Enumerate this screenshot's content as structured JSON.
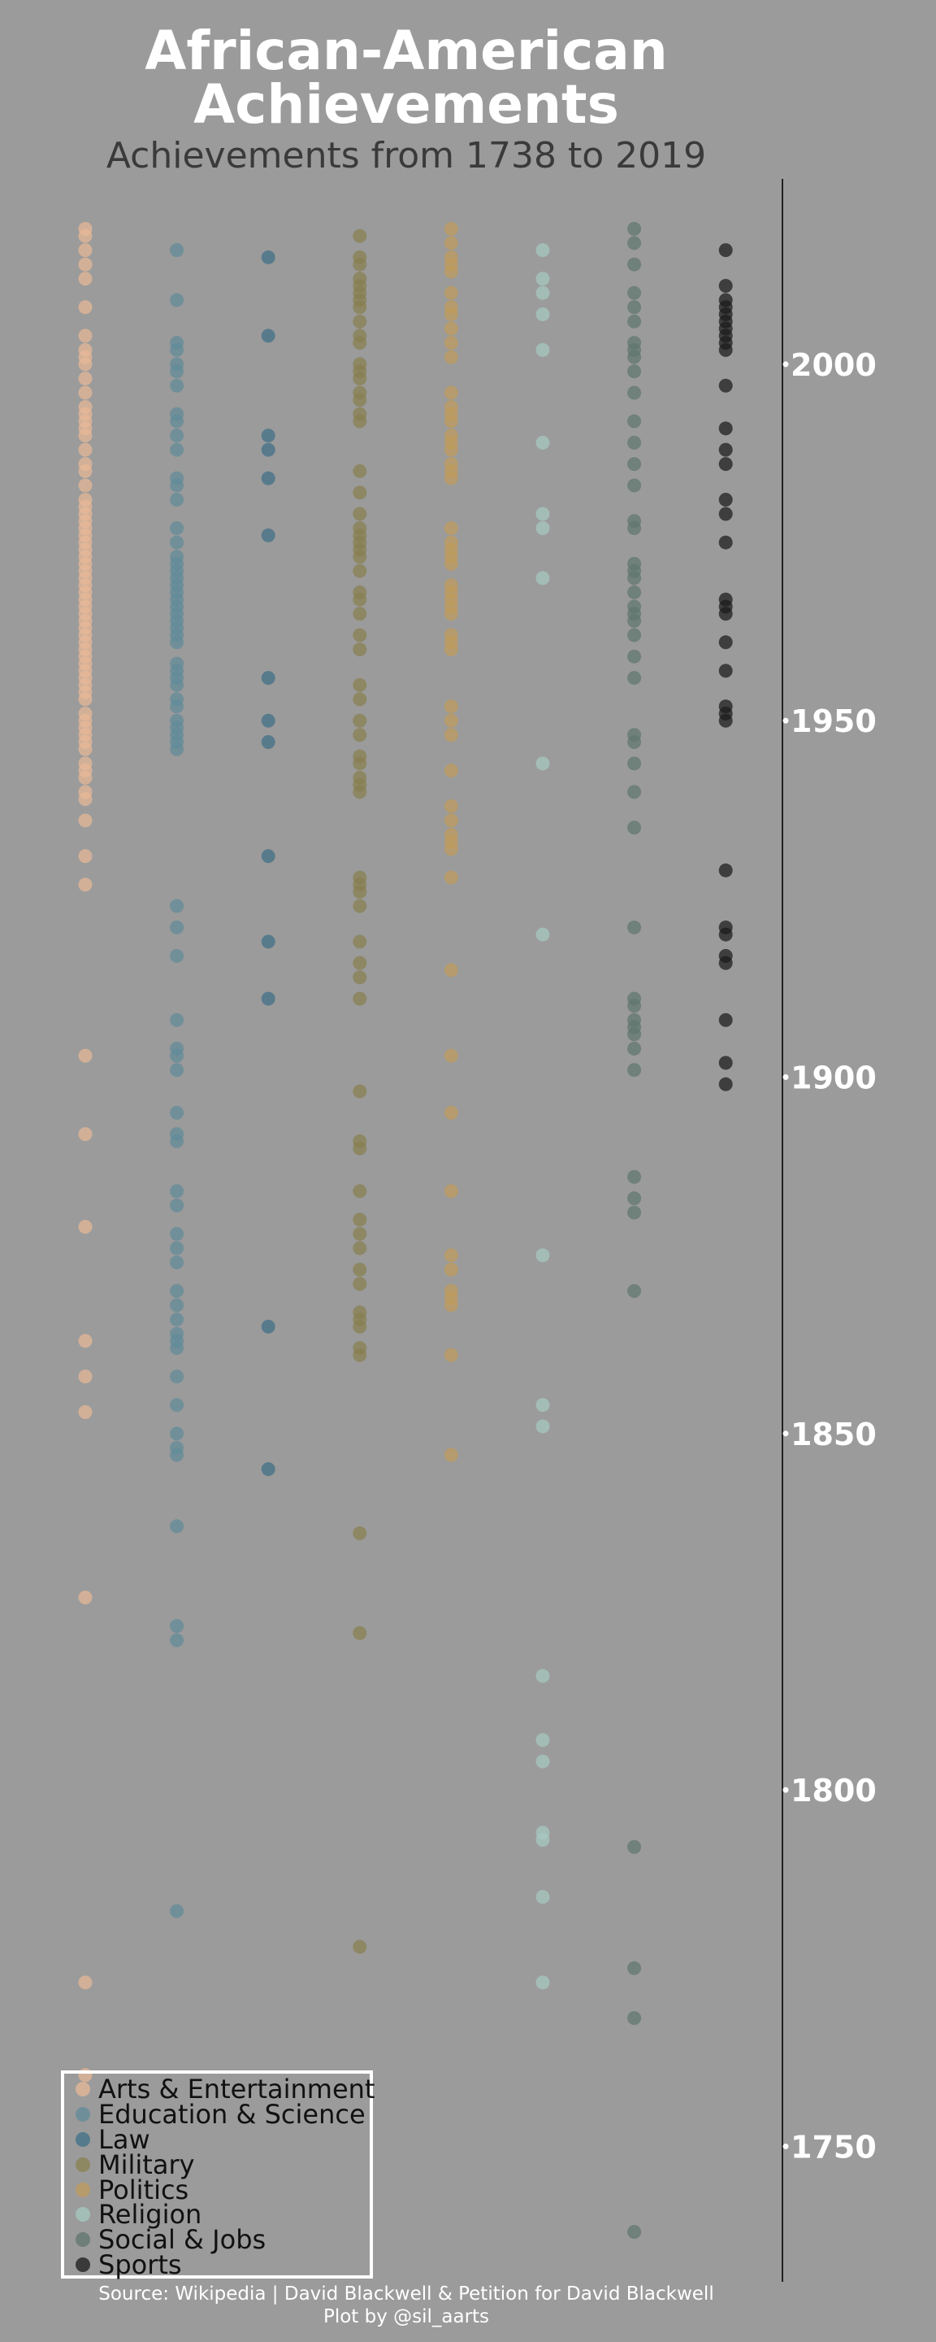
{
  "header": {
    "title_line1": "African-American",
    "title_line2": "Achievements",
    "subtitle": "Achievements from 1738 to 2019"
  },
  "footer": {
    "source": "Source: Wikipedia | David Blackwell & Petition for David Blackwell",
    "credit": "Plot by @sil_aarts"
  },
  "chart_data": {
    "type": "scatter",
    "title": "African-American Achievements",
    "subtitle": "Achievements from 1738 to 2019",
    "xlabel": "",
    "ylabel": "",
    "y_axis_side": "right",
    "ylim": [
      1731,
      2026
    ],
    "yticks": [
      1750,
      1800,
      1850,
      1900,
      1950,
      2000
    ],
    "ytick_labels": [
      "1750",
      "1800",
      "1850",
      "1900",
      "1950",
      "2000"
    ],
    "grid": false,
    "legend_position": "bottom-left",
    "series": [
      {
        "name": "Arts & Entertainment",
        "color": "#e8b896",
        "years": [
          2019,
          2018,
          2016,
          2014,
          2012,
          2008,
          2004,
          2002,
          2001,
          2000,
          1998,
          1996,
          1994,
          1993,
          1992,
          1991,
          1990,
          1988,
          1986,
          1985,
          1983,
          1981,
          1980,
          1979,
          1978,
          1977,
          1976,
          1975,
          1974,
          1973,
          1972,
          1971,
          1970,
          1969,
          1968,
          1967,
          1966,
          1965,
          1964,
          1963,
          1962,
          1961,
          1960,
          1959,
          1958,
          1957,
          1956,
          1955,
          1954,
          1953,
          1951,
          1950,
          1949,
          1948,
          1947,
          1946,
          1944,
          1943,
          1942,
          1940,
          1939,
          1936,
          1931,
          1927,
          1903,
          1892,
          1879,
          1863,
          1858,
          1853,
          1827,
          1773,
          1760
        ]
      },
      {
        "name": "Education & Science",
        "color": "#5f8b99",
        "years": [
          2016,
          2009,
          2003,
          2002,
          2000,
          1999,
          1997,
          1993,
          1992,
          1990,
          1988,
          1984,
          1983,
          1981,
          1977,
          1975,
          1973,
          1972,
          1971,
          1970,
          1969,
          1968,
          1967,
          1966,
          1965,
          1964,
          1963,
          1962,
          1961,
          1958,
          1957,
          1956,
          1955,
          1953,
          1952,
          1950,
          1949,
          1948,
          1947,
          1946,
          1924,
          1921,
          1917,
          1908,
          1904,
          1903,
          1901,
          1895,
          1892,
          1891,
          1884,
          1882,
          1878,
          1876,
          1874,
          1870,
          1868,
          1866,
          1864,
          1863,
          1862,
          1858,
          1854,
          1850,
          1848,
          1847,
          1837,
          1823,
          1821,
          1783
        ]
      },
      {
        "name": "Law",
        "color": "#3e6f87",
        "years": [
          2015,
          2004,
          1990,
          1988,
          1984,
          1976,
          1956,
          1950,
          1947,
          1931,
          1919,
          1911,
          1865,
          1845
        ]
      },
      {
        "name": "Military",
        "color": "#88804f",
        "years": [
          2018,
          2015,
          2014,
          2012,
          2011,
          2010,
          2009,
          2008,
          2006,
          2004,
          2003,
          2000,
          1999,
          1998,
          1996,
          1995,
          1993,
          1992,
          1985,
          1982,
          1979,
          1977,
          1976,
          1975,
          1974,
          1973,
          1971,
          1968,
          1967,
          1965,
          1962,
          1960,
          1955,
          1953,
          1950,
          1948,
          1945,
          1944,
          1942,
          1941,
          1940,
          1928,
          1927,
          1926,
          1924,
          1919,
          1916,
          1914,
          1911,
          1898,
          1891,
          1890,
          1884,
          1880,
          1878,
          1876,
          1873,
          1871,
          1867,
          1866,
          1865,
          1862,
          1861,
          1836,
          1822,
          1778
        ]
      },
      {
        "name": "Politics",
        "color": "#bf9b5c",
        "years": [
          2019,
          2017,
          2015,
          2014,
          2013,
          2010,
          2008,
          2007,
          2005,
          2003,
          2001,
          1996,
          1994,
          1993,
          1992,
          1990,
          1989,
          1988,
          1986,
          1985,
          1984,
          1977,
          1975,
          1974,
          1973,
          1972,
          1969,
          1968,
          1967,
          1966,
          1965,
          1962,
          1961,
          1960,
          1952,
          1950,
          1948,
          1943,
          1938,
          1936,
          1934,
          1933,
          1932,
          1928,
          1915,
          1903,
          1895,
          1884,
          1875,
          1873,
          1870,
          1869,
          1868,
          1861,
          1847
        ]
      },
      {
        "name": "Religion",
        "color": "#a6c9c0",
        "years": [
          2016,
          2012,
          2010,
          2007,
          2002,
          1989,
          1979,
          1977,
          1970,
          1944,
          1920,
          1875,
          1854,
          1851,
          1816,
          1807,
          1804,
          1794,
          1793,
          1785,
          1773
        ]
      },
      {
        "name": "Social & Jobs",
        "color": "#5f766e",
        "years": [
          2019,
          2017,
          2014,
          2010,
          2008,
          2006,
          2003,
          2002,
          2001,
          1999,
          1996,
          1992,
          1989,
          1986,
          1983,
          1978,
          1977,
          1972,
          1971,
          1970,
          1968,
          1966,
          1965,
          1964,
          1962,
          1959,
          1956,
          1948,
          1947,
          1944,
          1940,
          1935,
          1921,
          1911,
          1910,
          1908,
          1907,
          1906,
          1904,
          1901,
          1886,
          1883,
          1881,
          1870,
          1792,
          1775,
          1768,
          1738
        ]
      },
      {
        "name": "Sports",
        "color": "#1a1a1a",
        "years": [
          2016,
          2011,
          2009,
          2008,
          2007,
          2006,
          2005,
          2004,
          2003,
          2002,
          1997,
          1991,
          1988,
          1986,
          1981,
          1979,
          1975,
          1967,
          1966,
          1965,
          1961,
          1957,
          1952,
          1951,
          1950,
          1929,
          1921,
          1920,
          1917,
          1916,
          1908,
          1902,
          1899
        ]
      }
    ]
  }
}
